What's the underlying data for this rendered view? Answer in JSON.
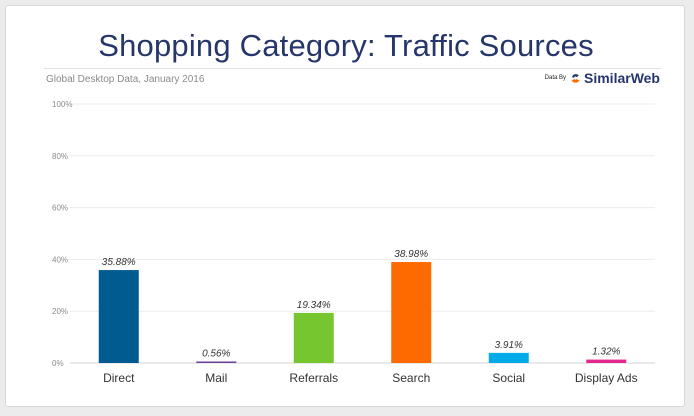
{
  "page": {
    "title": "Shopping Category: Traffic Sources",
    "subtitle": "Global Desktop Data, January 2016",
    "brand_prefix": "Data By",
    "brand_name": "SimilarWeb",
    "brand_icon": "similarweb-logo-icon"
  },
  "chart_data": {
    "type": "bar",
    "title": "Shopping Category: Traffic Sources",
    "subtitle": "Global Desktop Data, January 2016",
    "categories": [
      "Direct",
      "Mail",
      "Referrals",
      "Search",
      "Social",
      "Display Ads"
    ],
    "values": [
      35.88,
      0.56,
      19.34,
      38.98,
      3.91,
      1.32
    ],
    "value_labels": [
      "35.88%",
      "0.56%",
      "19.34%",
      "38.98%",
      "3.91%",
      "1.32%"
    ],
    "colors": [
      "#005b91",
      "#6a3f95",
      "#76c62f",
      "#ff6a00",
      "#00abe8",
      "#e3288f"
    ],
    "ylim": [
      0,
      100
    ],
    "yticks": [
      0,
      20,
      40,
      60,
      80,
      100
    ],
    "ytick_labels": [
      "0%",
      "20%",
      "40%",
      "60%",
      "80%",
      "100%"
    ],
    "xlabel": "",
    "ylabel": "",
    "grid": true,
    "legend": "none"
  }
}
